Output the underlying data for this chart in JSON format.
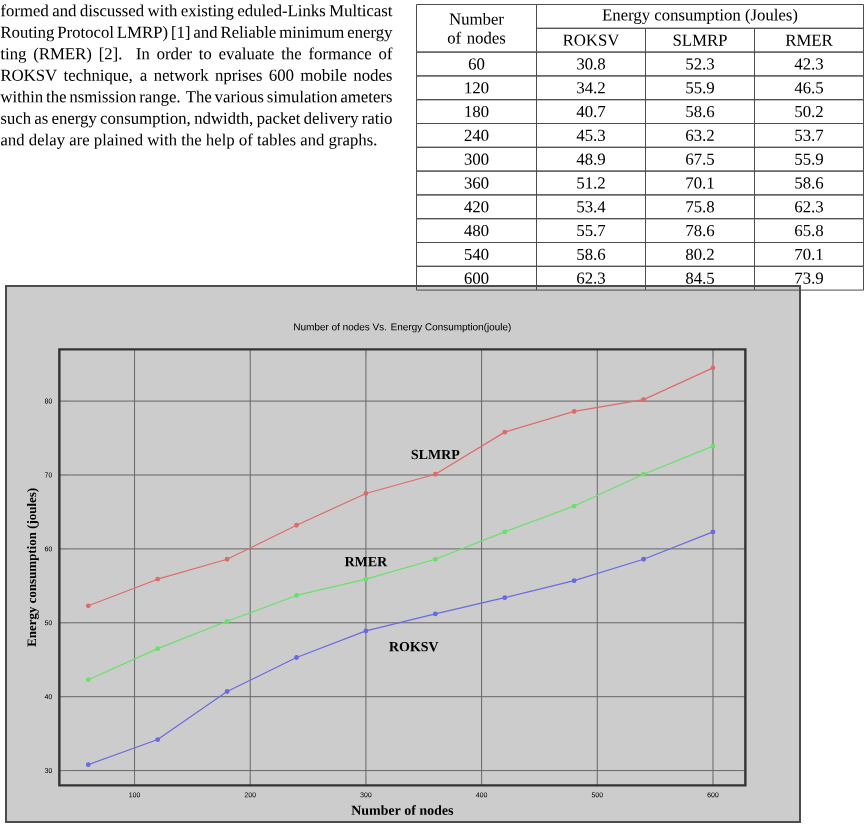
{
  "chart_data": [
    {
      "type": "line",
      "title": "Number of nodes Vs. Energy Consumption(joule)",
      "xlabel": "Number of nodes",
      "ylabel": "Energy consumption (joules)",
      "annotations": [
        "formed and discussed with existing eduled-Links Multicast Routing Protocol LMRP) [1] and Reliable minimum energy ting (RMER) [2]. In order to evaluate the formance of ROKSV technique, a network nprises 600 mobile nodes within the nsmission range. The various simulation ameters such as energy consumption, ndwidth, packet delivery ratio and delay are plained with the help of tables and graphs."
      ],
      "x": [
        60,
        120,
        180,
        240,
        300,
        360,
        420,
        480,
        540,
        600
      ],
      "series": [
        {
          "name": "ROKSV",
          "color": "#6a6ae0",
          "values": [
            30.8,
            34.2,
            40.7,
            45.3,
            48.9,
            51.2,
            53.4,
            55.7,
            58.6,
            62.3
          ]
        },
        {
          "name": "SLMRP",
          "color": "#e06a6a",
          "values": [
            52.3,
            55.9,
            58.6,
            63.2,
            67.5,
            70.1,
            75.8,
            78.6,
            80.2,
            84.5
          ]
        },
        {
          "name": "RMER",
          "color": "#6ae06a",
          "values": [
            42.3,
            46.5,
            50.2,
            53.7,
            55.9,
            58.6,
            62.3,
            65.8,
            70.1,
            73.9
          ]
        }
      ],
      "xlim": [
        35,
        628
      ],
      "xticks": [
        100,
        200,
        300,
        400,
        500,
        600
      ],
      "ylim": [
        28,
        87
      ],
      "yticks": [
        30,
        40,
        50,
        60,
        70,
        80
      ],
      "grid": true,
      "legend": false,
      "marker": "circle",
      "line_style": "solid"
    },
    {
      "type": "heatmap",
      "ylabel": "Number of nodes",
      "title": "Energy consumption (Joules)",
      "data_labels": true,
      "categories": [
        "ROKSV",
        "SLMRP",
        "RMER"
      ],
      "y_categories": [
        "60",
        "120",
        "180",
        "240",
        "300",
        "360",
        "420",
        "480",
        "540",
        "600"
      ],
      "cells": [
        [
          30.8,
          52.3,
          42.3
        ],
        [
          34.2,
          55.9,
          46.5
        ],
        [
          40.7,
          58.6,
          50.2
        ],
        [
          45.3,
          63.2,
          53.7
        ],
        [
          48.9,
          67.5,
          55.9
        ],
        [
          51.2,
          70.1,
          58.6
        ],
        [
          53.4,
          75.8,
          62.3
        ],
        [
          55.7,
          78.6,
          65.8
        ],
        [
          58.6,
          80.2,
          70.1
        ],
        [
          62.3,
          84.5,
          73.9
        ]
      ]
    }
  ]
}
